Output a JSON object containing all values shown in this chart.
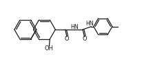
{
  "bg_color": "#ffffff",
  "line_color": "#1a1a1a",
  "line_width": 0.9,
  "fig_width": 2.09,
  "fig_height": 0.96,
  "dpi": 100,
  "xlim": [
    0,
    10.5
  ],
  "ylim": [
    0,
    4.8
  ]
}
